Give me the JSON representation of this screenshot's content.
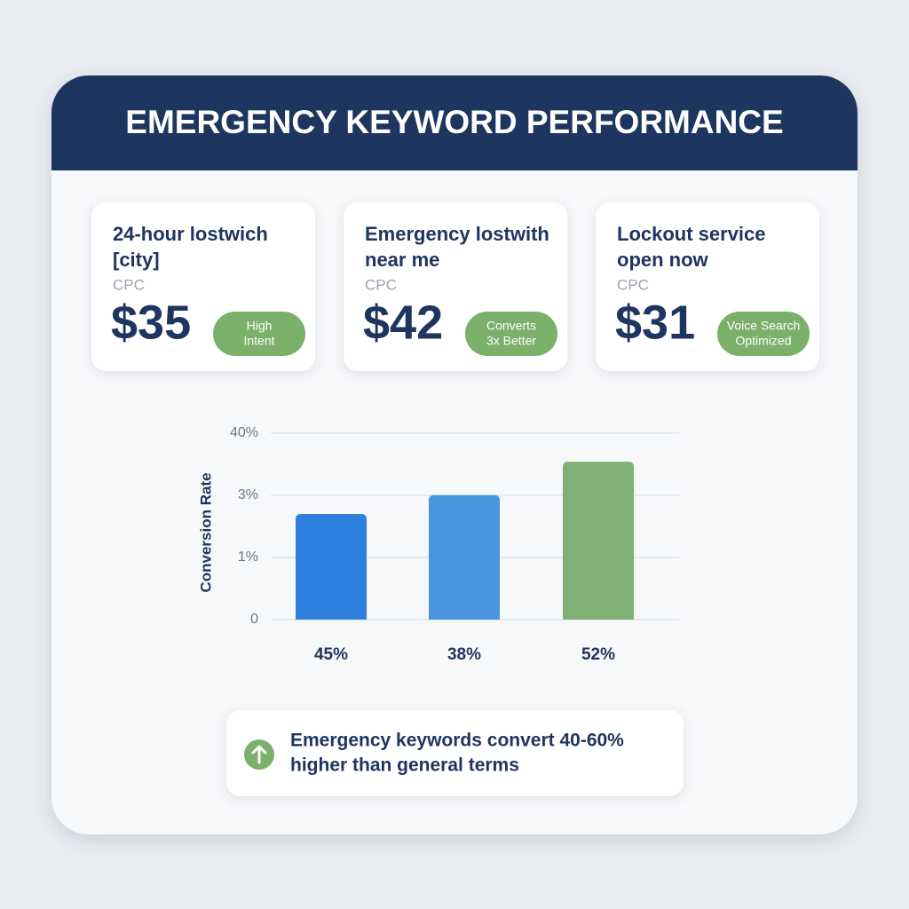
{
  "header": {
    "title": "EMERGENCY KEYWORD PERFORMANCE"
  },
  "cards": [
    {
      "title": [
        "24-hour lostwich",
        "[city]"
      ],
      "metric": "CPC",
      "price": "$35",
      "badge": [
        "High",
        "Intent"
      ]
    },
    {
      "title": [
        "Emergency lostwith",
        "near me"
      ],
      "metric": "CPC",
      "price": "$42",
      "badge": [
        "Converts",
        "3x Better"
      ]
    },
    {
      "title": [
        "Lockout service",
        "open now"
      ],
      "metric": "CPC",
      "price": "$31",
      "badge": [
        "Voice Search",
        "Optimized"
      ]
    }
  ],
  "chart_data": {
    "type": "bar",
    "y_label": "Conversion Rate",
    "categories": [
      "45%",
      "38%",
      "52%"
    ],
    "values": [
      2.4,
      3.1,
      23
    ],
    "colors": [
      "#2f80de",
      "#4a96de",
      "#7fb174"
    ],
    "ylim": [
      0,
      40
    ],
    "yticks": [
      0,
      {
        "value": 1,
        "label": "1%"
      },
      {
        "value": 3,
        "label": "3%"
      },
      {
        "value": 40,
        "label": "40%"
      }
    ],
    "grid": true
  },
  "callout": {
    "lines": [
      "Emergency keywords convert 40-60%",
      "higher than general terms"
    ]
  }
}
